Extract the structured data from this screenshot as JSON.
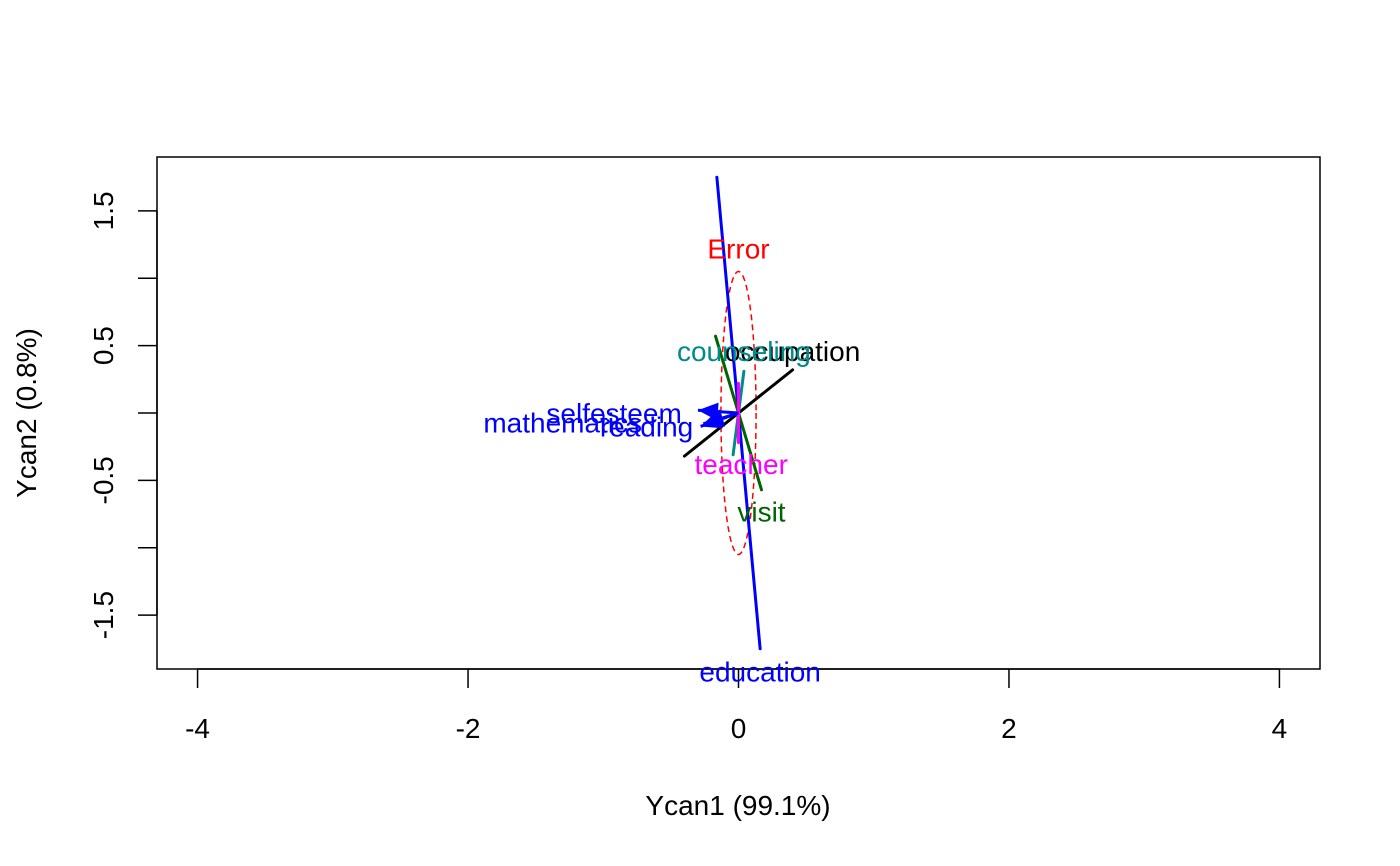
{
  "chart_data": {
    "type": "scatter",
    "title": "",
    "xlabel": "Ycan1 (99.1%)",
    "ylabel": "Ycan2 (0.8%)",
    "xlim": [
      -4.3,
      4.3
    ],
    "ylim": [
      -1.9,
      1.9
    ],
    "x_ticks": [
      -4,
      -2,
      0,
      2,
      4
    ],
    "x_tick_labels": [
      "-4",
      "-2",
      "0",
      "2",
      "4"
    ],
    "y_ticks": [
      -1.5,
      -1,
      -0.5,
      0,
      0.5,
      1,
      1.5
    ],
    "y_tick_labels": [
      "-1.5",
      "",
      "-0.5",
      "",
      "0.5",
      "",
      "1.5"
    ],
    "grid": false,
    "legend": "none",
    "effects": [
      {
        "name": "education",
        "color": "#0000FF",
        "lw": 3,
        "x1": -0.16,
        "y1": 1.75,
        "x2": 0.16,
        "y2": -1.75,
        "label_pos": [
          0.16,
          -1.92
        ]
      },
      {
        "name": "occupation",
        "color": "#000000",
        "lw": 3,
        "x1": -0.4,
        "y1": -0.32,
        "x2": 0.4,
        "y2": 0.32,
        "label_pos": [
          0.4,
          0.46
        ]
      },
      {
        "name": "visit",
        "color": "#006400",
        "lw": 3,
        "x1": -0.17,
        "y1": 0.57,
        "x2": 0.17,
        "y2": -0.57,
        "label_pos": [
          0.17,
          -0.73
        ]
      },
      {
        "name": "counseling",
        "color": "#008B8B",
        "lw": 3,
        "x1": -0.04,
        "y1": -0.31,
        "x2": 0.04,
        "y2": 0.31,
        "label_pos": [
          0.04,
          0.46
        ]
      },
      {
        "name": "teacher",
        "color": "#FF00FF",
        "lw": 3,
        "x1": 0.0,
        "y1": 0.22,
        "x2": 0.0,
        "y2": -0.22,
        "label_pos": [
          0.02,
          -0.38
        ]
      }
    ],
    "responses": [
      {
        "name": "selfesteem",
        "color": "#0000FF",
        "x": -0.3,
        "y": 0.02,
        "label_pos": [
          -0.92,
          0.0
        ]
      },
      {
        "name": "mathematics",
        "color": "#0000FF",
        "x": -0.28,
        "y": -0.1,
        "label_pos": [
          -1.3,
          -0.07
        ]
      },
      {
        "name": "reading",
        "color": "#0000FF",
        "x": -0.26,
        "y": -0.08,
        "label_pos": [
          -0.68,
          -0.1
        ]
      }
    ],
    "error": {
      "name": "Error",
      "color": "#FF0000",
      "cx": 0.0,
      "cy": 0.0,
      "rx": 0.13,
      "ry": 1.05,
      "label_pos": [
        0.0,
        1.22
      ]
    }
  }
}
